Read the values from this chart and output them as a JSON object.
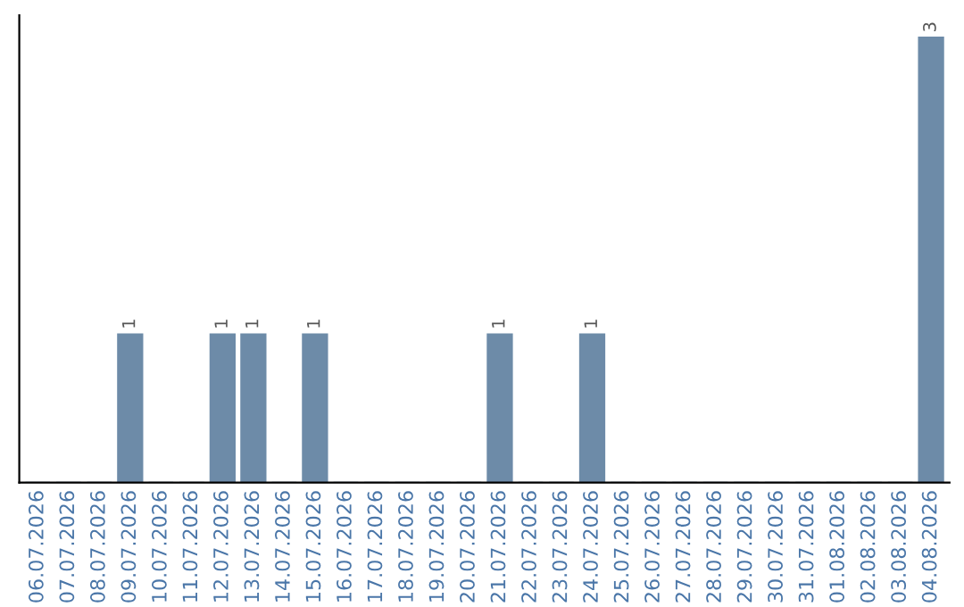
{
  "chart_data": {
    "type": "bar",
    "categories": [
      "06.07.2026",
      "07.07.2026",
      "08.07.2026",
      "09.07.2026",
      "10.07.2026",
      "11.07.2026",
      "12.07.2026",
      "13.07.2026",
      "14.07.2026",
      "15.07.2026",
      "16.07.2026",
      "17.07.2026",
      "18.07.2026",
      "19.07.2026",
      "20.07.2026",
      "21.07.2026",
      "22.07.2026",
      "23.07.2026",
      "24.07.2026",
      "25.07.2026",
      "26.07.2026",
      "27.07.2026",
      "28.07.2026",
      "29.07.2026",
      "30.07.2026",
      "31.07.2026",
      "01.08.2026",
      "02.08.2026",
      "03.08.2026",
      "04.08.2026"
    ],
    "values": [
      0,
      0,
      0,
      1,
      0,
      0,
      1,
      1,
      0,
      1,
      0,
      0,
      0,
      0,
      0,
      1,
      0,
      0,
      1,
      0,
      0,
      0,
      0,
      0,
      0,
      0,
      0,
      0,
      0,
      3
    ],
    "value_labels": [
      null,
      null,
      null,
      "1",
      null,
      null,
      "1",
      "1",
      null,
      "1",
      null,
      null,
      null,
      null,
      null,
      "1",
      null,
      null,
      "1",
      null,
      null,
      null,
      null,
      null,
      null,
      null,
      null,
      null,
      null,
      "3"
    ],
    "color": "#6d8ba8",
    "tick_labels": "x",
    "grid": false,
    "legend": false
  }
}
